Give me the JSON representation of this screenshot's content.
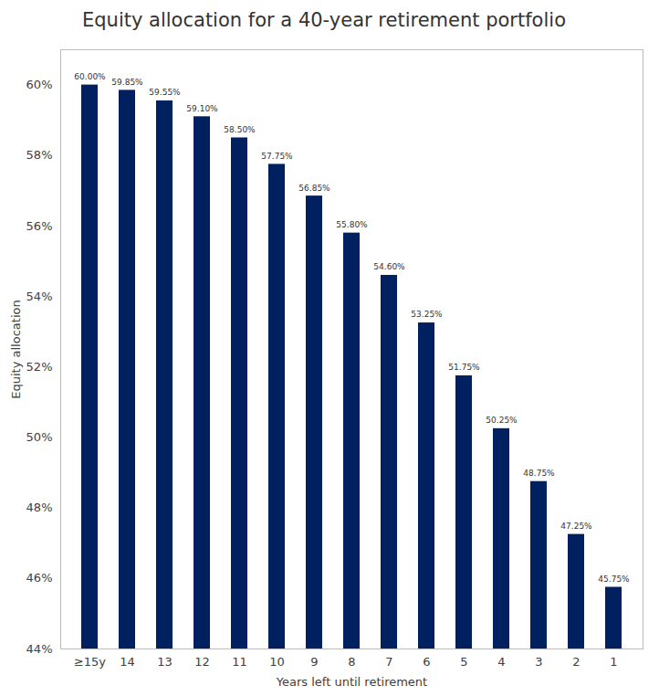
{
  "chart_data": {
    "type": "bar",
    "title": "Equity allocation for a 40-year retirement portfolio",
    "x_label": "Years left until retirement",
    "y_label": "Equity allocation",
    "categories": [
      "≥15y",
      "14",
      "13",
      "12",
      "11",
      "10",
      "9",
      "8",
      "7",
      "6",
      "5",
      "4",
      "3",
      "2",
      "1"
    ],
    "values": [
      60,
      59.85,
      59.55,
      59.1,
      58.5,
      57.75,
      56.85,
      55.8,
      54.6,
      53.25,
      51.75,
      50.25,
      48.75,
      47.25,
      45.75
    ],
    "value_labels": [
      "60.00%",
      "59.85%",
      "59.55%",
      "59.10%",
      "58.50%",
      "57.75%",
      "56.85%",
      "55.80%",
      "54.60%",
      "53.25%",
      "51.75%",
      "50.25%",
      "48.75%",
      "47.25%",
      "45.75%"
    ],
    "color": "#002060",
    "ylim": [
      44,
      61
    ],
    "yticks": [
      {
        "value": 44,
        "label": "44%"
      },
      {
        "value": 46,
        "label": "46%"
      },
      {
        "value": 48,
        "label": "48%"
      },
      {
        "value": 50,
        "label": "50%"
      },
      {
        "value": 52,
        "label": "52%"
      },
      {
        "value": 54,
        "label": "54%"
      },
      {
        "value": 56,
        "label": "56%"
      },
      {
        "value": 58,
        "label": "58%"
      },
      {
        "value": 60,
        "label": "60%"
      }
    ],
    "grid": false,
    "data_labels": true
  }
}
